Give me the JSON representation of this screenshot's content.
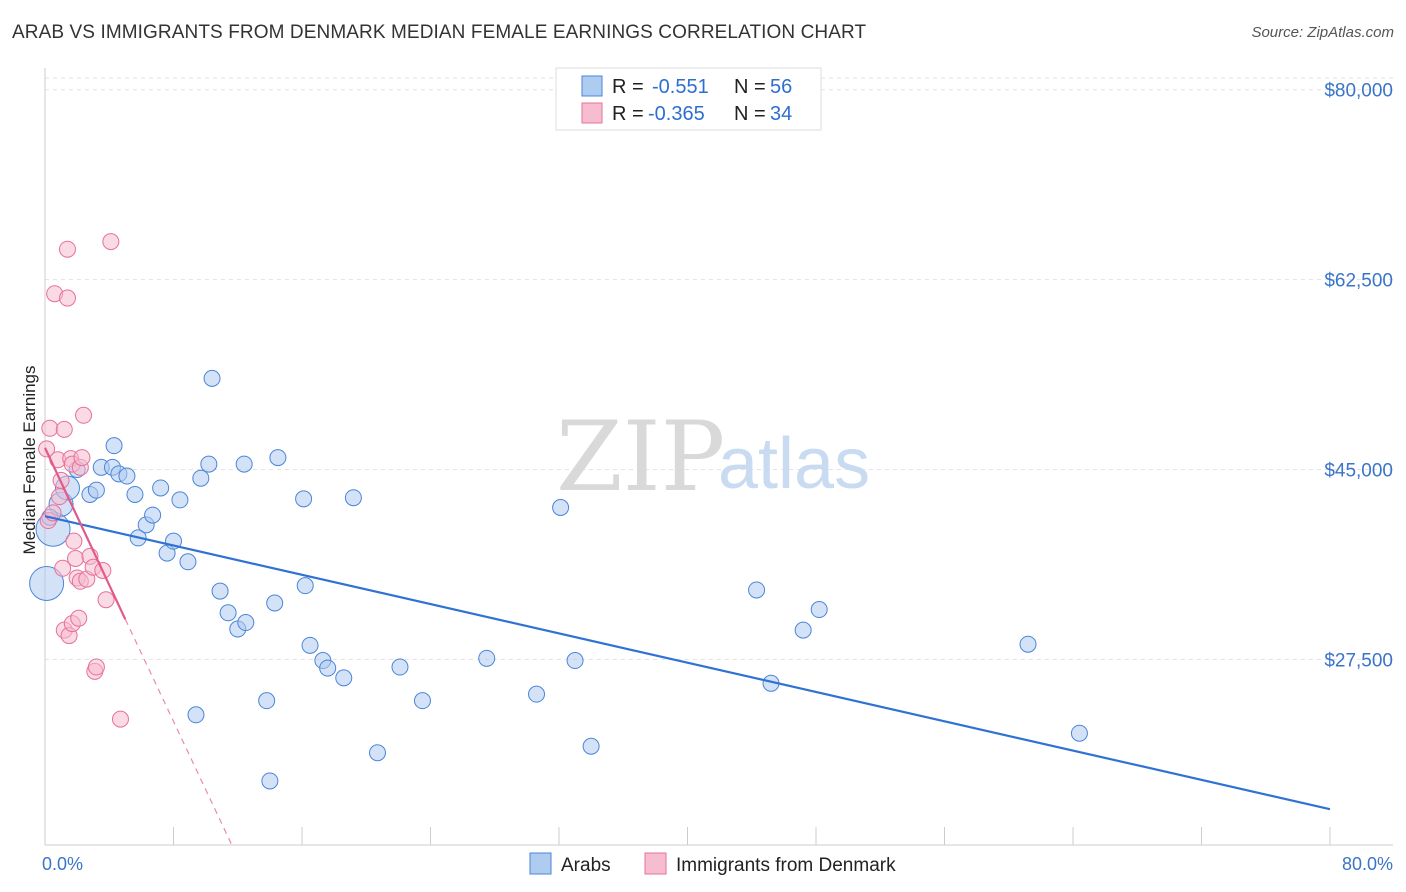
{
  "title": "ARAB VS IMMIGRANTS FROM DENMARK MEDIAN FEMALE EARNINGS CORRELATION CHART",
  "source": "Source: ZipAtlas.com",
  "watermark": {
    "part1": "ZIP",
    "part2": "atlas"
  },
  "colors": {
    "blue": "#4a86d8",
    "blue_fill": "#aecbf0",
    "pink": "#e8709a",
    "pink_fill": "#f6bcd0",
    "tick": "#3a74c8"
  },
  "legend": {
    "r_label": "R =",
    "n_label": "N =",
    "rows": [
      {
        "r": "-0.551",
        "n": "56"
      },
      {
        "r": "-0.365",
        "n": "34"
      }
    ]
  },
  "chart_data": {
    "type": "scatter",
    "title": "ARAB VS IMMIGRANTS FROM DENMARK MEDIAN FEMALE EARNINGS CORRELATION CHART",
    "xlabel": "",
    "ylabel": "Median Female Earnings",
    "xlim": [
      0,
      80
    ],
    "ylim": [
      10400,
      82000
    ],
    "x_tick_labels": [
      "0.0%",
      "80.0%"
    ],
    "y_ticks": [
      27500,
      45000,
      62500,
      80000
    ],
    "y_tick_labels": [
      "$27,500",
      "$45,000",
      "$62,500",
      "$80,000"
    ],
    "grid": true,
    "legend_position": "bottom-center",
    "series": [
      {
        "name": "Arabs",
        "r": -0.551,
        "n": 56,
        "trend": {
          "x0": 0,
          "y0": 40700,
          "x1": 80,
          "y1": 13700
        },
        "points": [
          [
            0.1,
            34500,
            3
          ],
          [
            0.5,
            39500,
            3
          ],
          [
            1.0,
            41800,
            2
          ],
          [
            1.4,
            43300,
            2
          ],
          [
            2.0,
            45000,
            1
          ],
          [
            2.8,
            42700,
            1
          ],
          [
            3.2,
            43100,
            1
          ],
          [
            3.5,
            45200,
            1
          ],
          [
            4.2,
            45200,
            1
          ],
          [
            4.3,
            47200,
            1
          ],
          [
            4.6,
            44600,
            1
          ],
          [
            5.1,
            44400,
            1
          ],
          [
            5.6,
            42700,
            1
          ],
          [
            5.8,
            38700,
            1
          ],
          [
            6.3,
            39900,
            1
          ],
          [
            6.7,
            40800,
            1
          ],
          [
            7.2,
            43300,
            1
          ],
          [
            7.6,
            37300,
            1
          ],
          [
            8.0,
            38400,
            1
          ],
          [
            8.4,
            42200,
            1
          ],
          [
            8.9,
            36500,
            1
          ],
          [
            9.4,
            22400,
            1
          ],
          [
            9.7,
            44200,
            1
          ],
          [
            10.2,
            45500,
            1
          ],
          [
            10.4,
            53400,
            1
          ],
          [
            10.9,
            33800,
            1
          ],
          [
            11.4,
            31800,
            1
          ],
          [
            12.0,
            30300,
            1
          ],
          [
            12.5,
            30900,
            1
          ],
          [
            12.4,
            45500,
            1
          ],
          [
            13.8,
            23700,
            1
          ],
          [
            14.0,
            16300,
            1
          ],
          [
            14.3,
            32700,
            1
          ],
          [
            14.5,
            46100,
            1
          ],
          [
            16.1,
            42300,
            1
          ],
          [
            16.2,
            34300,
            1
          ],
          [
            16.5,
            28800,
            1
          ],
          [
            17.3,
            27400,
            1
          ],
          [
            17.6,
            26700,
            1
          ],
          [
            18.6,
            25800,
            1
          ],
          [
            19.2,
            42400,
            1
          ],
          [
            20.7,
            18900,
            1
          ],
          [
            22.1,
            26800,
            1
          ],
          [
            23.5,
            23700,
            1
          ],
          [
            27.5,
            27600,
            1
          ],
          [
            30.6,
            24300,
            1
          ],
          [
            32.1,
            41500,
            1
          ],
          [
            33.0,
            27400,
            1
          ],
          [
            34.0,
            19500,
            1
          ],
          [
            44.3,
            33900,
            1
          ],
          [
            45.2,
            25300,
            1
          ],
          [
            47.2,
            30200,
            1
          ],
          [
            48.2,
            32100,
            1
          ],
          [
            61.2,
            28900,
            1
          ],
          [
            64.4,
            20700,
            1
          ],
          [
            0.3,
            40600,
            1
          ]
        ]
      },
      {
        "name": "Immigrants from Denmark",
        "r": -0.365,
        "n": 34,
        "trend": {
          "x0": 0,
          "y0": 47000,
          "x1": 5,
          "y1": 31200,
          "x1_dashed": 11.6,
          "y1_dashed": 10500
        },
        "points": [
          [
            0.1,
            46900,
            1
          ],
          [
            0.2,
            40300,
            1
          ],
          [
            0.3,
            48800,
            1
          ],
          [
            0.5,
            41000,
            1
          ],
          [
            0.8,
            45900,
            1
          ],
          [
            0.6,
            61200,
            1
          ],
          [
            0.9,
            42500,
            1
          ],
          [
            1.0,
            44000,
            1
          ],
          [
            1.1,
            35900,
            1
          ],
          [
            1.2,
            48700,
            1
          ],
          [
            1.2,
            30200,
            1
          ],
          [
            1.4,
            60800,
            1
          ],
          [
            1.4,
            65300,
            1
          ],
          [
            1.5,
            29700,
            1
          ],
          [
            1.6,
            46000,
            1
          ],
          [
            1.7,
            30800,
            1
          ],
          [
            1.7,
            45500,
            1
          ],
          [
            1.8,
            38400,
            1
          ],
          [
            1.9,
            36800,
            1
          ],
          [
            2.0,
            35000,
            1
          ],
          [
            2.1,
            31300,
            1
          ],
          [
            2.2,
            45200,
            1
          ],
          [
            2.2,
            34700,
            1
          ],
          [
            2.3,
            46100,
            1
          ],
          [
            2.4,
            50000,
            1
          ],
          [
            2.6,
            34900,
            1
          ],
          [
            2.8,
            37000,
            1
          ],
          [
            3.0,
            36000,
            1
          ],
          [
            3.1,
            26400,
            1
          ],
          [
            3.2,
            26800,
            1
          ],
          [
            3.6,
            35700,
            1
          ],
          [
            3.8,
            33000,
            1
          ],
          [
            4.1,
            66000,
            1
          ],
          [
            4.7,
            22000,
            1
          ]
        ]
      }
    ]
  }
}
